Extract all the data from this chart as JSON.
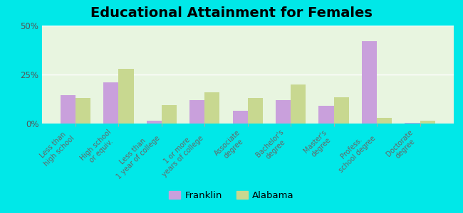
{
  "title": "Educational Attainment for Females",
  "categories": [
    "Less than\nhigh school",
    "High school\nor equiv.",
    "Less than\n1 year of college",
    "1 or more\nyears of college",
    "Associate\ndegree",
    "Bachelor's\ndegree",
    "Master's\ndegree",
    "Profess.\nschool degree",
    "Doctorate\ndegree"
  ],
  "franklin_values": [
    14.5,
    21.0,
    1.5,
    12.0,
    6.5,
    12.0,
    9.0,
    42.0,
    0.5
  ],
  "alabama_values": [
    13.0,
    28.0,
    9.5,
    16.0,
    13.0,
    20.0,
    13.5,
    3.0,
    1.5
  ],
  "franklin_color": "#c9a0dc",
  "alabama_color": "#c8d890",
  "background_color": "#e8f5e0",
  "outer_background": "#00e8e8",
  "ylim": [
    0,
    50
  ],
  "yticks": [
    0,
    25,
    50
  ],
  "ytick_labels": [
    "0%",
    "25%",
    "50%"
  ],
  "bar_width": 0.35,
  "title_fontsize": 14,
  "legend_labels": [
    "Franklin",
    "Alabama"
  ]
}
